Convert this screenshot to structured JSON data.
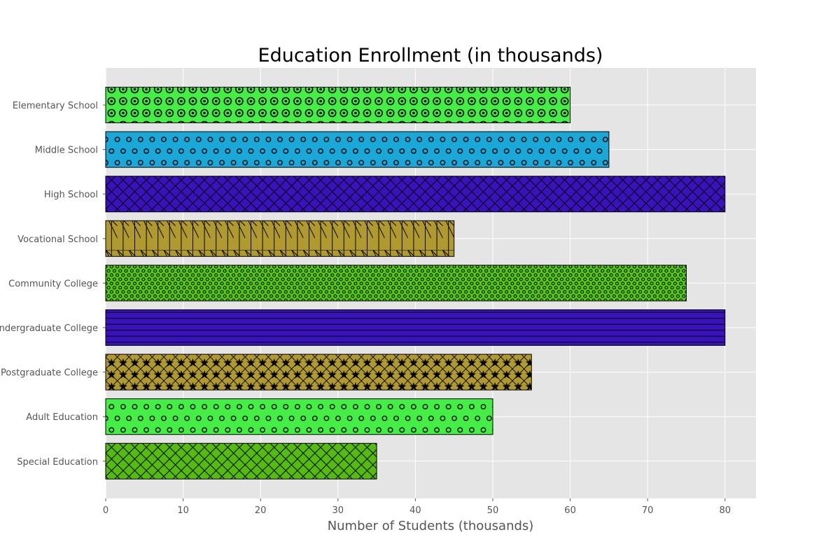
{
  "chart_data": {
    "type": "bar",
    "orientation": "horizontal",
    "title": "Education Enrollment (in thousands)",
    "xlabel": "Number of Students (thousands)",
    "ylabel": "",
    "xlim": [
      0,
      84
    ],
    "xticks": [
      0,
      10,
      20,
      30,
      40,
      50,
      60,
      70,
      80
    ],
    "grid": true,
    "categories": [
      "Elementary School",
      "Middle School",
      "High School",
      "Vocational School",
      "Community College",
      "Undergraduate College",
      "Postgraduate College",
      "Adult Education",
      "Special Education"
    ],
    "values": [
      60,
      65,
      80,
      45,
      75,
      80,
      55,
      50,
      35
    ],
    "colors": [
      "#44ee44",
      "#1aa8d8",
      "#3a12bb",
      "#b09a30",
      "#55cc11",
      "#3a12bb",
      "#b09a30",
      "#44ee44",
      "#55bb11"
    ],
    "hatches": [
      "ring",
      "circle",
      "cross",
      "slash-vertical",
      "dot",
      "horizontal",
      "star",
      "circle",
      "cross"
    ]
  }
}
